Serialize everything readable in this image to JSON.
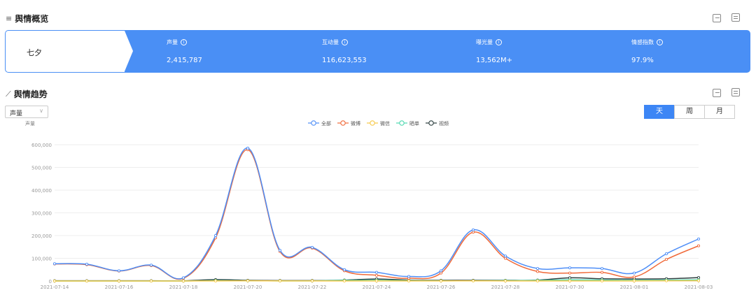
{
  "overview": {
    "title": "舆情概览",
    "name": "七夕",
    "metrics": [
      {
        "label": "声量",
        "value": "2,415,787"
      },
      {
        "label": "互动量",
        "value": "116,623,553"
      },
      {
        "label": "曝光量",
        "value": "13,562M+"
      },
      {
        "label": "情感指数",
        "value": "97.9%"
      }
    ]
  },
  "trend": {
    "title": "舆情趋势",
    "select_value": "声量",
    "toggle": [
      "天",
      "周",
      "月"
    ],
    "active_toggle": "天"
  },
  "colors": {
    "accent": "#4a8ff5"
  },
  "chart_data": {
    "type": "line",
    "ylabel": "声量",
    "ylim": [
      0,
      600000
    ],
    "yticks": [
      "0",
      "100,000",
      "200,000",
      "300,000",
      "400,000",
      "500,000",
      "600,000"
    ],
    "x": [
      "2021-07-14",
      "2021-07-15",
      "2021-07-16",
      "2021-07-17",
      "2021-07-18",
      "2021-07-19",
      "2021-07-20",
      "2021-07-21",
      "2021-07-22",
      "2021-07-23",
      "2021-07-24",
      "2021-07-25",
      "2021-07-26",
      "2021-07-27",
      "2021-07-28",
      "2021-07-29",
      "2021-07-30",
      "2021-07-31",
      "2021-08-01",
      "2021-08-02",
      "2021-08-03"
    ],
    "xticks": [
      "2021-07-14",
      "2021-07-16",
      "2021-07-18",
      "2021-07-20",
      "2021-07-22",
      "2021-07-24",
      "2021-07-26",
      "2021-07-28",
      "2021-07-30",
      "2021-08-01",
      "2021-08-03"
    ],
    "legend_position": "top-center",
    "series": [
      {
        "name": "全部",
        "color": "#4e8ef7",
        "values": [
          76000,
          74000,
          45000,
          70000,
          14000,
          200000,
          585000,
          135000,
          148000,
          50000,
          38000,
          20000,
          45000,
          225000,
          110000,
          55000,
          58000,
          55000,
          35000,
          120000,
          185000
        ]
      },
      {
        "name": "微博",
        "color": "#f06a3a",
        "values": [
          75000,
          72000,
          44000,
          68000,
          12000,
          190000,
          578000,
          130000,
          145000,
          45000,
          25000,
          12000,
          35000,
          215000,
          100000,
          42000,
          35000,
          38000,
          18000,
          95000,
          155000
        ]
      },
      {
        "name": "微信",
        "color": "#f7c948",
        "values": [
          0,
          0,
          0,
          0,
          0,
          500,
          1000,
          500,
          500,
          500,
          500,
          500,
          500,
          800,
          500,
          500,
          500,
          500,
          500,
          1000,
          1500
        ]
      },
      {
        "name": "晒单",
        "color": "#4ed8b0",
        "values": [
          0,
          0,
          0,
          0,
          0,
          2000,
          1000,
          500,
          500,
          3000,
          3000,
          2000,
          1000,
          1000,
          2000,
          3000,
          5000,
          4000,
          3000,
          4000,
          5000
        ]
      },
      {
        "name": "视频",
        "color": "#2a3d3d",
        "values": [
          1000,
          1000,
          1000,
          1000,
          1000,
          6000,
          3000,
          2000,
          2000,
          4000,
          9000,
          4000,
          3000,
          3000,
          3000,
          4000,
          14000,
          10000,
          9000,
          10000,
          15000
        ]
      }
    ]
  }
}
